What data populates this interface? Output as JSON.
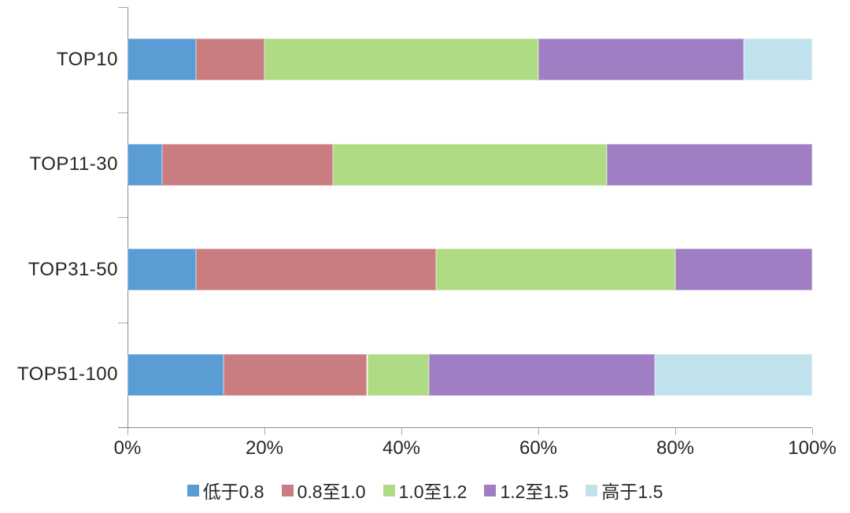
{
  "chart_data": {
    "type": "bar",
    "orientation": "horizontal-stacked",
    "title": "",
    "xlabel": "",
    "ylabel": "",
    "grid": false,
    "xlim": [
      0,
      100
    ],
    "x_tick_labels": [
      "0%",
      "20%",
      "40%",
      "60%",
      "80%",
      "100%"
    ],
    "x_tick_values": [
      0,
      20,
      40,
      60,
      80,
      100
    ],
    "categories": [
      "TOP10",
      "TOP11-30",
      "TOP31-50",
      "TOP51-100"
    ],
    "series": [
      {
        "name": "低于0.8",
        "color": "#5A9CD4",
        "values": [
          10,
          5,
          10,
          14
        ]
      },
      {
        "name": "0.8至1.0",
        "color": "#C97D81",
        "values": [
          10,
          25,
          35,
          21
        ]
      },
      {
        "name": "1.0至1.2",
        "color": "#AFDB85",
        "values": [
          40,
          40,
          35,
          9
        ]
      },
      {
        "name": "1.2至1.5",
        "color": "#A07EC3",
        "values": [
          30,
          30,
          20,
          33
        ]
      },
      {
        "name": "高于1.5",
        "color": "#C0E2EC",
        "values": [
          10,
          0,
          0,
          23
        ]
      }
    ],
    "legend": {
      "position": "bottom",
      "labels": [
        "低于0.8",
        "0.8至1.0",
        "1.0至1.2",
        "1.2至1.5",
        "高于1.5"
      ]
    }
  },
  "styles": {
    "axis_color": "#8e8e8e",
    "tick_color": "#a8a8a8",
    "text_color": "#262626",
    "background": "#ffffff"
  }
}
